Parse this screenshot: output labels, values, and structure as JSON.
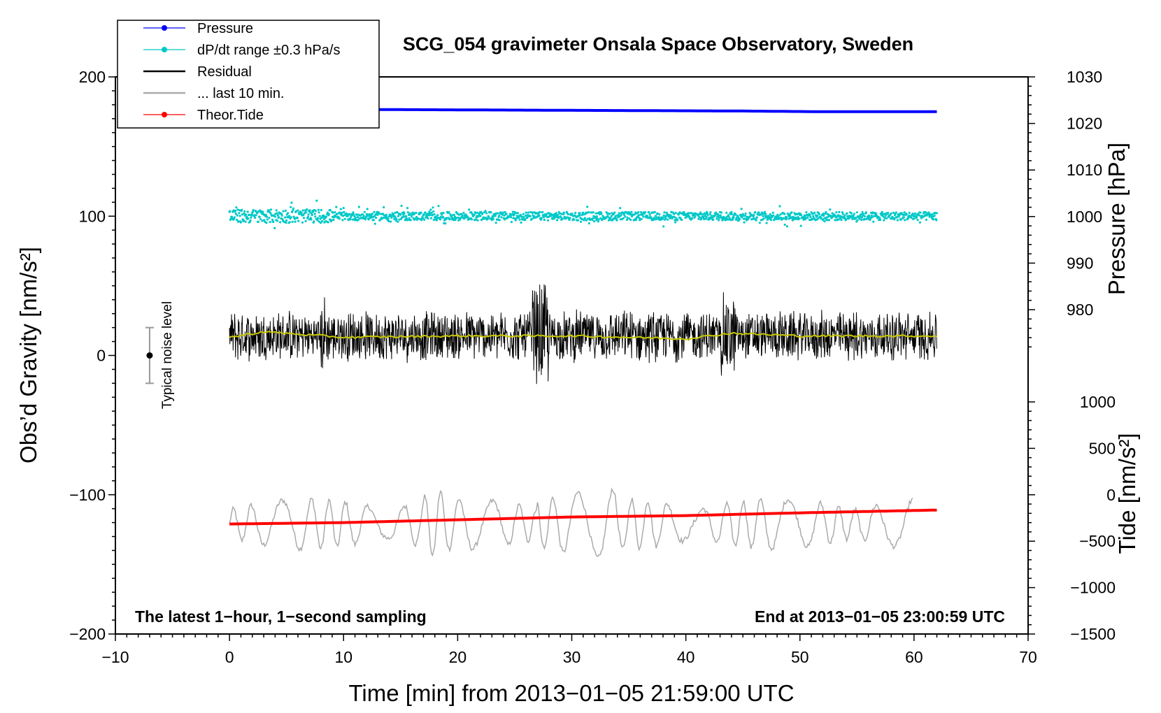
{
  "chart_data": {
    "type": "line",
    "title": "SCG_054 gravimeter Onsala Space Observatory, Sweden",
    "xlabel": "Time [min] from 2013−01−05 21:59:00 UTC",
    "ylabel_left": "Obs’d Gravity [nm/s²]",
    "ylabel_right_pressure": "Pressure [hPa]",
    "ylabel_right_tide": "Tide [nm/s²]",
    "xlim": [
      -10,
      70
    ],
    "ylim": [
      -200,
      200
    ],
    "pressure_axis_range": [
      970,
      1030
    ],
    "tide_axis_range": [
      -1500,
      1000
    ],
    "x_ticks": [
      "−10",
      "0",
      "10",
      "20",
      "30",
      "40",
      "50",
      "60",
      "70"
    ],
    "y_ticks": [
      "200",
      "100",
      "0",
      "−100",
      "−200"
    ],
    "pressure_ticks": [
      "1030",
      "1020",
      "1010",
      "1000",
      "990",
      "980"
    ],
    "tide_ticks": [
      "1000",
      "500",
      "0",
      "−500",
      "−1000",
      "−1500"
    ],
    "annotation_left": "The latest 1−hour, 1−second sampling",
    "annotation_right": "End at 2013−01−05 23:00:59 UTC",
    "noise_label": "Typical noise level",
    "noise_bar": {
      "x": -7,
      "center": 0,
      "low": -20,
      "high": 20
    },
    "legend": [
      {
        "label": "Pressure",
        "color": "#0000ff",
        "style": "line-dot"
      },
      {
        "label": "dP/dt range ±0.3 hPa/s",
        "color": "#00c8c8",
        "style": "line-dot"
      },
      {
        "label": "Residual",
        "color": "#000000",
        "style": "line"
      },
      {
        "label": "... last 10 min.",
        "color": "#aaaaaa",
        "style": "line"
      },
      {
        "label": "Theor.Tide",
        "color": "#ff0000",
        "style": "line-dot"
      }
    ],
    "series": [
      {
        "name": "Pressure",
        "color": "#0000ff",
        "x": [
          0,
          15,
          30,
          45,
          52,
          62
        ],
        "y": [
          177,
          176.5,
          176,
          175.5,
          175,
          175
        ]
      },
      {
        "name": "dP/dt range",
        "color": "#00c8c8",
        "x_range": [
          0,
          62
        ],
        "center": 100,
        "spread": 3
      },
      {
        "name": "Residual",
        "color": "#000000",
        "x_range": [
          0,
          62
        ],
        "center": 14,
        "amplitude": 18
      },
      {
        "name": "Residual mean",
        "color": "#c8c800",
        "x": [
          0,
          3,
          10,
          20,
          30,
          40,
          44,
          50,
          62
        ],
        "y": [
          13,
          17,
          13,
          14,
          14,
          12,
          16,
          14,
          14
        ]
      },
      {
        "name": "Theor.Tide",
        "color": "#ff0000",
        "x": [
          0,
          10,
          20,
          30,
          40,
          50,
          62
        ],
        "y": [
          -121,
          -120,
          -118,
          -116,
          -115,
          -113,
          -111
        ]
      },
      {
        "name": "... last 10 min.",
        "color": "#aaaaaa",
        "x_range": [
          0,
          60
        ],
        "center": -121,
        "amplitude": 18
      }
    ]
  }
}
